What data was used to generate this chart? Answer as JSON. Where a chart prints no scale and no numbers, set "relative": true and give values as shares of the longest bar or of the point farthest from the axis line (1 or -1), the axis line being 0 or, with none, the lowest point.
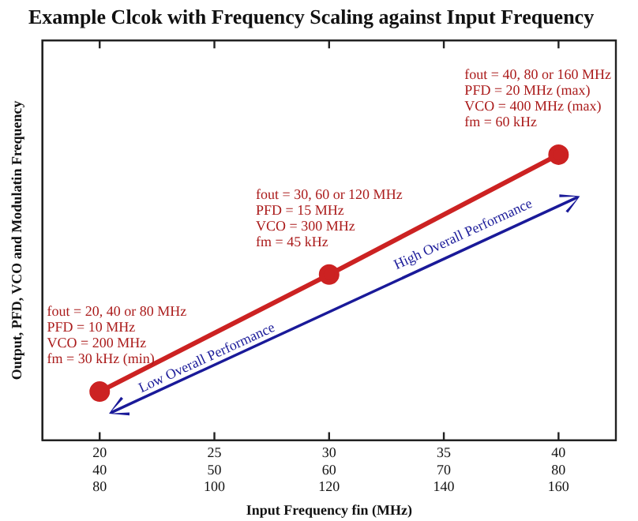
{
  "chart_data": {
    "type": "line",
    "title": "Example Clcok with Frequency Scaling against Input Frequency",
    "xlabel": "Input Frequency fin (MHz)",
    "ylabel": "Output, PFD, VCO and Modulatin Frequency",
    "categories": [
      "20\n40\n80",
      "25\n50\n100",
      "30\n60\n120",
      "35\n70\n140",
      "40\n80\n160"
    ],
    "relative": true,
    "values": [
      0.17,
      null,
      0.58,
      null,
      1
    ],
    "color": "#cc2222",
    "marker": "circle",
    "grid": false,
    "legend": false,
    "annotations": [
      {
        "text": "fout = 20, 40 or 80 MHz\nPFD = 10 MHz\nVCO = 200 MHz\nfm = 30 kHz (min)",
        "x": "20\n40\n80",
        "y": 0.17
      },
      {
        "text": "fout = 30, 60 or 120 MHz\nPFD = 15 MHz\nVCO = 300 MHz\nfm = 45 kHz",
        "x": "30\n60\n120",
        "y": 0.58
      },
      {
        "text": "fout = 40, 80 or 160 MHz\nPFD = 20 MHz (max)\nVCO = 400 MHz (max)\nfm = 60 kHz",
        "x": "40\n80\n160",
        "y": 1
      },
      "Low Overall Performance",
      "High Overall Performance"
    ]
  }
}
